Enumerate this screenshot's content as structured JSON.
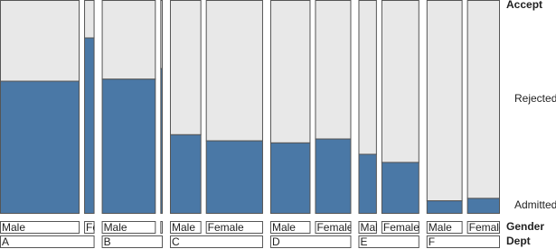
{
  "chart_data": {
    "type": "mosaic",
    "y_label": "Accept",
    "gender_label": "Gender",
    "dept_label": "Dept",
    "departments": [
      "A",
      "B",
      "C",
      "D",
      "E",
      "F"
    ],
    "genders": [
      "Male",
      "Female"
    ],
    "series": [
      {
        "name": "Admitted",
        "color": "#4a78a6",
        "values": [
          512,
          89,
          353,
          17,
          120,
          202,
          138,
          131,
          53,
          94,
          22,
          24
        ]
      },
      {
        "name": "Rejected",
        "color": "#e8e8e8",
        "values": [
          313,
          19,
          207,
          8,
          205,
          391,
          279,
          244,
          138,
          299,
          351,
          317
        ]
      }
    ]
  }
}
